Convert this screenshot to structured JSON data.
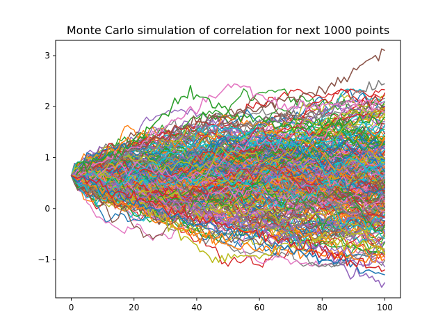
{
  "chart_data": {
    "type": "line",
    "title": "Monte Carlo simulation of correlation for next 1000 points",
    "xlabel": "",
    "ylabel": "",
    "xlim": [
      -5,
      105
    ],
    "ylim": [
      -1.75,
      3.3
    ],
    "xticks": [
      0,
      20,
      40,
      60,
      80,
      100
    ],
    "xtick_labels": [
      "0",
      "20",
      "40",
      "60",
      "80",
      "100"
    ],
    "yticks": [
      -1,
      0,
      1,
      2,
      3
    ],
    "ytick_labels": [
      "−1",
      "0",
      "1",
      "2",
      "3"
    ],
    "grid": false,
    "legend": "none",
    "simulation": {
      "start_x": 0,
      "end_x": 100,
      "step": 1,
      "start_value": 0.65,
      "path_count": 1000,
      "final_min": -1.5,
      "final_max": 3.1
    },
    "highlighted_paths": [
      {
        "x": [
          0,
          20,
          40,
          60,
          80,
          90,
          100
        ],
        "y": [
          0.65,
          1.2,
          1.7,
          2.0,
          2.3,
          2.7,
          3.1
        ]
      },
      {
        "x": [
          0,
          20,
          40,
          60,
          80,
          90,
          100
        ],
        "y": [
          0.65,
          1.1,
          1.5,
          1.7,
          1.9,
          2.2,
          2.45
        ]
      },
      {
        "x": [
          0,
          20,
          40,
          52,
          70,
          100
        ],
        "y": [
          0.65,
          1.2,
          2.0,
          2.45,
          2.0,
          2.1
        ]
      },
      {
        "x": [
          0,
          20,
          38,
          50,
          70,
          100
        ],
        "y": [
          0.65,
          1.3,
          2.3,
          1.9,
          1.6,
          1.8
        ]
      },
      {
        "x": [
          0,
          20,
          40,
          60,
          80,
          100
        ],
        "y": [
          0.65,
          0.0,
          -0.5,
          -0.8,
          -0.9,
          -1.0
        ]
      },
      {
        "x": [
          0,
          20,
          45,
          60,
          80,
          100
        ],
        "y": [
          0.65,
          0.2,
          -1.0,
          -0.9,
          -0.6,
          -0.8
        ]
      },
      {
        "x": [
          0,
          20,
          40,
          60,
          80,
          90,
          100
        ],
        "y": [
          0.65,
          0.3,
          0.0,
          -0.4,
          -0.8,
          -1.3,
          -1.45
        ]
      },
      {
        "x": [
          0,
          20,
          40,
          60,
          80,
          100
        ],
        "y": [
          0.65,
          0.1,
          -0.3,
          -0.6,
          -1.0,
          -1.3
        ]
      },
      {
        "x": [
          0,
          30,
          60,
          80,
          100
        ],
        "y": [
          0.65,
          0.0,
          -0.5,
          -0.9,
          -1.2
        ]
      }
    ],
    "colors": [
      "#1f77b4",
      "#ff7f0e",
      "#2ca02c",
      "#d62728",
      "#9467bd",
      "#8c564b",
      "#e377c2",
      "#7f7f7f",
      "#bcbd22",
      "#17becf"
    ]
  }
}
